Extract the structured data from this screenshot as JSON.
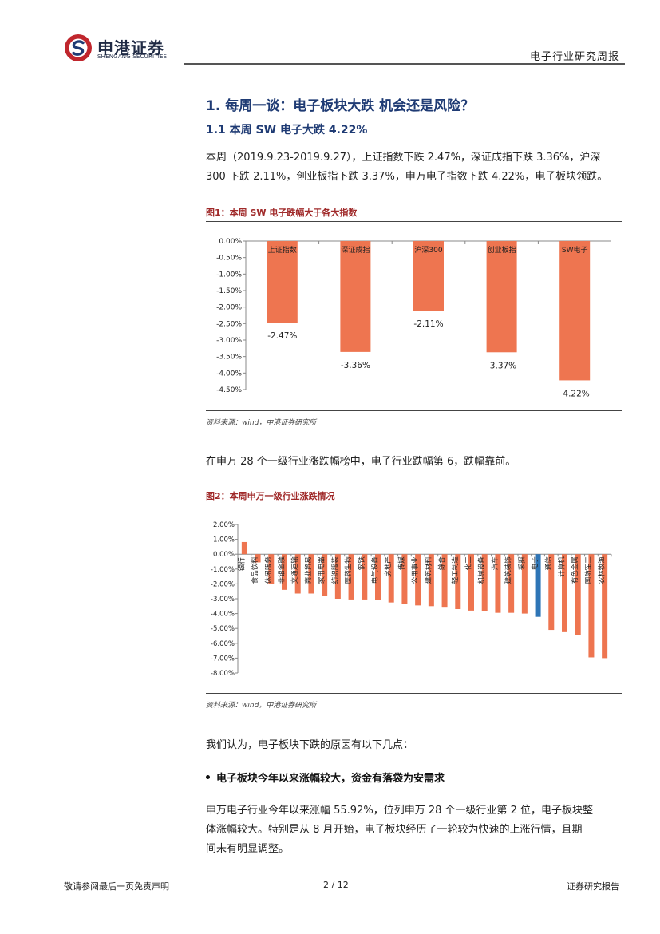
{
  "header": {
    "logo_cn": "申港证券",
    "logo_en": "SHENGANG SECURITIES",
    "report_type": "电子行业研究周报"
  },
  "section": {
    "h1": "1. 每周一谈：电子板块大跌 机会还是风险？",
    "h2": "1.1 本周 SW 电子大跌 4.22%"
  },
  "paragraph1": [
    "本周（2019.9.23-2019.9.27），上证指数下跌 2.47%，深证成指下跌 3.36%，沪深",
    "300 下跌 2.11%，创业板指下跌 3.37%，申万电子指数下跌 4.22%，电子板块领跌。"
  ],
  "figure1": {
    "title": "图1：本周 SW 电子跌幅大于各大指数",
    "source": "资料来源：wind，中港证券研究所"
  },
  "paragraph2": "在申万 28 个一级行业涨跌幅榜中，电子行业跌幅第 6，跌幅靠前。",
  "figure2": {
    "title": "图2：本周申万一级行业涨跌情况",
    "source": "资料来源：wind，中港证券研究所"
  },
  "paragraph3": "我们认为，电子板块下跌的原因有以下几点：",
  "bullet1": "电子板块今年以来涨幅较大，资金有落袋为安需求",
  "paragraph4": [
    "申万电子行业今年以来涨幅 55.92%，位列申万 28 个一级行业第 2 位，电子板块整",
    "体涨幅较大。特别是从 8 月开始，电子板块经历了一轮较为快速的上涨行情，且期",
    "间未有明显调整。"
  ],
  "footer": {
    "left": "敬请参阅最后一页免责声明",
    "page": "2 / 12",
    "right": "证券研究报告"
  },
  "colors": {
    "bar_orange": "#ee7550",
    "bar_highlight": "#2e75b6",
    "heading_blue": "#1f3b74",
    "figure_title_red": "#a02a2a"
  },
  "chart_data": [
    {
      "type": "bar",
      "categories": [
        "上证指数",
        "深证成指",
        "沪深300",
        "创业板指",
        "SW电子"
      ],
      "values": [
        -2.47,
        -3.36,
        -2.11,
        -3.37,
        -4.22
      ],
      "value_labels": [
        "-2.47%",
        "-3.36%",
        "-2.11%",
        "-3.37%",
        "-4.22%"
      ],
      "ylim": [
        -4.5,
        0
      ],
      "yticks": [
        "0.00%",
        "-0.50%",
        "-1.00%",
        "-1.50%",
        "-2.00%",
        "-2.50%",
        "-3.00%",
        "-3.50%",
        "-4.00%",
        "-4.50%"
      ],
      "grid": false,
      "legend": "none"
    },
    {
      "type": "bar",
      "categories": [
        "银行",
        "食品饮料",
        "休闲服务",
        "非银金融",
        "交通运输",
        "商业贸易",
        "家用电器",
        "纺织服装",
        "医药生物",
        "钢铁",
        "电气设备",
        "房地产",
        "传媒",
        "公用事业",
        "建筑材料",
        "综合",
        "轻工制造",
        "化工",
        "机械设备",
        "汽车",
        "建筑装饰",
        "采掘",
        "电子",
        "通信",
        "计算机",
        "有色金属",
        "国防军工",
        "农林牧渔"
      ],
      "values": [
        0.82,
        -0.55,
        -2.0,
        -2.4,
        -2.65,
        -2.65,
        -2.8,
        -3.0,
        -3.05,
        -3.05,
        -3.1,
        -3.25,
        -3.35,
        -3.45,
        -3.5,
        -3.6,
        -3.7,
        -3.8,
        -3.85,
        -3.95,
        -3.95,
        -4.0,
        -4.22,
        -5.1,
        -5.25,
        -5.45,
        -6.95,
        -7.0
      ],
      "highlight_category": "电子",
      "ylim": [
        -8,
        2
      ],
      "yticks": [
        "2.00%",
        "1.00%",
        "0.00%",
        "-1.00%",
        "-2.00%",
        "-3.00%",
        "-4.00%",
        "-5.00%",
        "-6.00%",
        "-7.00%",
        "-8.00%"
      ],
      "grid": false,
      "legend": "none"
    }
  ]
}
